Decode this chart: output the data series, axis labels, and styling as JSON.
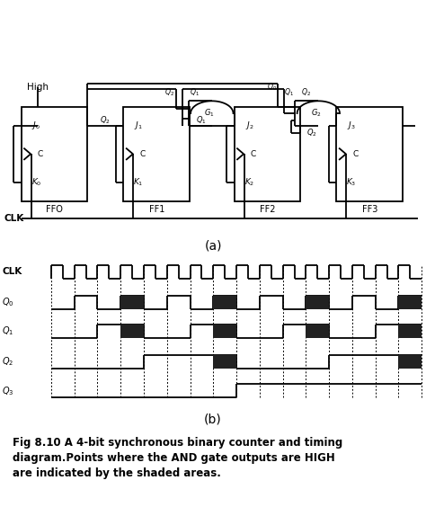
{
  "bg_color": "#ffffff",
  "line_color": "#000000",
  "shade_color": "#222222",
  "title_line1": "Fig 8.10 A 4-bit synchronous binary counter and timing",
  "title_line2": "diagram.Points where the AND gate outputs are HIGH",
  "title_line3": "are indicated by the shaded areas.",
  "label_a": "(a)",
  "label_b": "(b)",
  "ff_labels": [
    "FFO",
    "FF1",
    "FF2",
    "FF3"
  ],
  "clk_label": "CLK",
  "high_label": "High",
  "waveform_labels": [
    "CLK",
    "Q0",
    "Q1",
    "Q2",
    "Q3"
  ],
  "n_clk": 16
}
